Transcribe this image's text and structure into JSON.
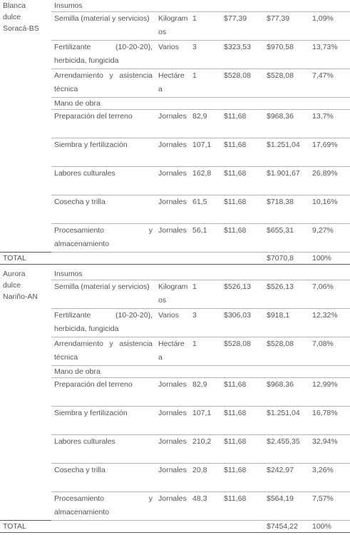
{
  "table": {
    "blocks": [
      {
        "variety": "Blanca dulce Soracá-BS",
        "insumos_label": "Insumos",
        "insumos": [
          {
            "item": "Semilla (material y servicios)",
            "unit": "Kilogramos",
            "quantity": "1",
            "unit_cost": "$77,39",
            "total": "$77,39",
            "percent": "1,09%"
          },
          {
            "item": "Fertilizante (10-20-20), herbicida, fungicida",
            "unit": "Varios",
            "quantity": "3",
            "unit_cost": "$323,53",
            "total": "$970,58",
            "percent": "13,73%"
          },
          {
            "item": "Arrendamiento y asistencia técnica",
            "unit": "Hectárea",
            "quantity": "1",
            "unit_cost": "$528,08",
            "total": "$528,08",
            "percent": "7,47%"
          }
        ],
        "mano_label": "Mano de obra",
        "mano": [
          {
            "item": "Preparación del terreno",
            "unit": "Jornales",
            "quantity": "82,9",
            "unit_cost": "$11,68",
            "total": "$968,36",
            "percent": "13,7%"
          },
          {
            "item": "Siembra y fertilización",
            "unit": "Jornales",
            "quantity": "107,1",
            "unit_cost": "$11,68",
            "total": "$1.251,04",
            "percent": "17,69%"
          },
          {
            "item": "Labores culturales",
            "unit": "Jornales",
            "quantity": "162,8",
            "unit_cost": "$11,68",
            "total": "$1.901,67",
            "percent": "26,89%"
          },
          {
            "item": "Cosecha y trilla",
            "unit": "Jornales",
            "quantity": "61,5",
            "unit_cost": "$11,68",
            "total": "$718,38",
            "percent": "10,16%"
          },
          {
            "item": "Procesamiento y almacenamiento",
            "unit": "Jornales",
            "quantity": "56,1",
            "unit_cost": "$11,68",
            "total": "$655,31",
            "percent": "9,27%"
          }
        ],
        "total_label": "TOTAL",
        "total": "$7070,8",
        "total_percent": "100%"
      },
      {
        "variety": "Aurora dulce Nariño-AN",
        "insumos_label": "Insumos",
        "insumos": [
          {
            "item": "Semilla (material y servicios)",
            "unit": "Kilogramos",
            "quantity": "1",
            "unit_cost": "$526,13",
            "total": "$526,13",
            "percent": "7,06%"
          },
          {
            "item": "Fertilizante (10-20-20), herbicida, fungicida",
            "unit": "Varios",
            "quantity": "3",
            "unit_cost": "$306,03",
            "total": "$918,1",
            "percent": "12,32%"
          },
          {
            "item": "Arrendamiento y asistencia técnica",
            "unit": "Hectárea",
            "quantity": "1",
            "unit_cost": "$528,08",
            "total": "$528,08",
            "percent": "7,08%"
          }
        ],
        "mano_label": "Mano de obra",
        "mano": [
          {
            "item": "Preparación del terreno",
            "unit": "Jornales",
            "quantity": "82,9",
            "unit_cost": "$11,68",
            "total": "$968,36",
            "percent": "12,99%"
          },
          {
            "item": "Siembra y fertilización",
            "unit": "Jornales",
            "quantity": "107,1",
            "unit_cost": "$11,68",
            "total": "$1.251,04",
            "percent": "16,78%"
          },
          {
            "item": "Labores culturales",
            "unit": "Jornales",
            "quantity": "210,2",
            "unit_cost": "$11,68",
            "total": "$2.455,35",
            "percent": "32,94%"
          },
          {
            "item": "Cosecha y trilla",
            "unit": "Jornales",
            "quantity": "20,8",
            "unit_cost": "$11,68",
            "total": "$242,97",
            "percent": "3,26%"
          },
          {
            "item": "Procesamiento y almacenamiento",
            "unit": "Jornales",
            "quantity": "48,3",
            "unit_cost": "$11,68",
            "total": "$564,19",
            "percent": "7,57%"
          }
        ],
        "total_label": "TOTAL",
        "total": "$7454,22",
        "total_percent": "100%"
      }
    ]
  }
}
